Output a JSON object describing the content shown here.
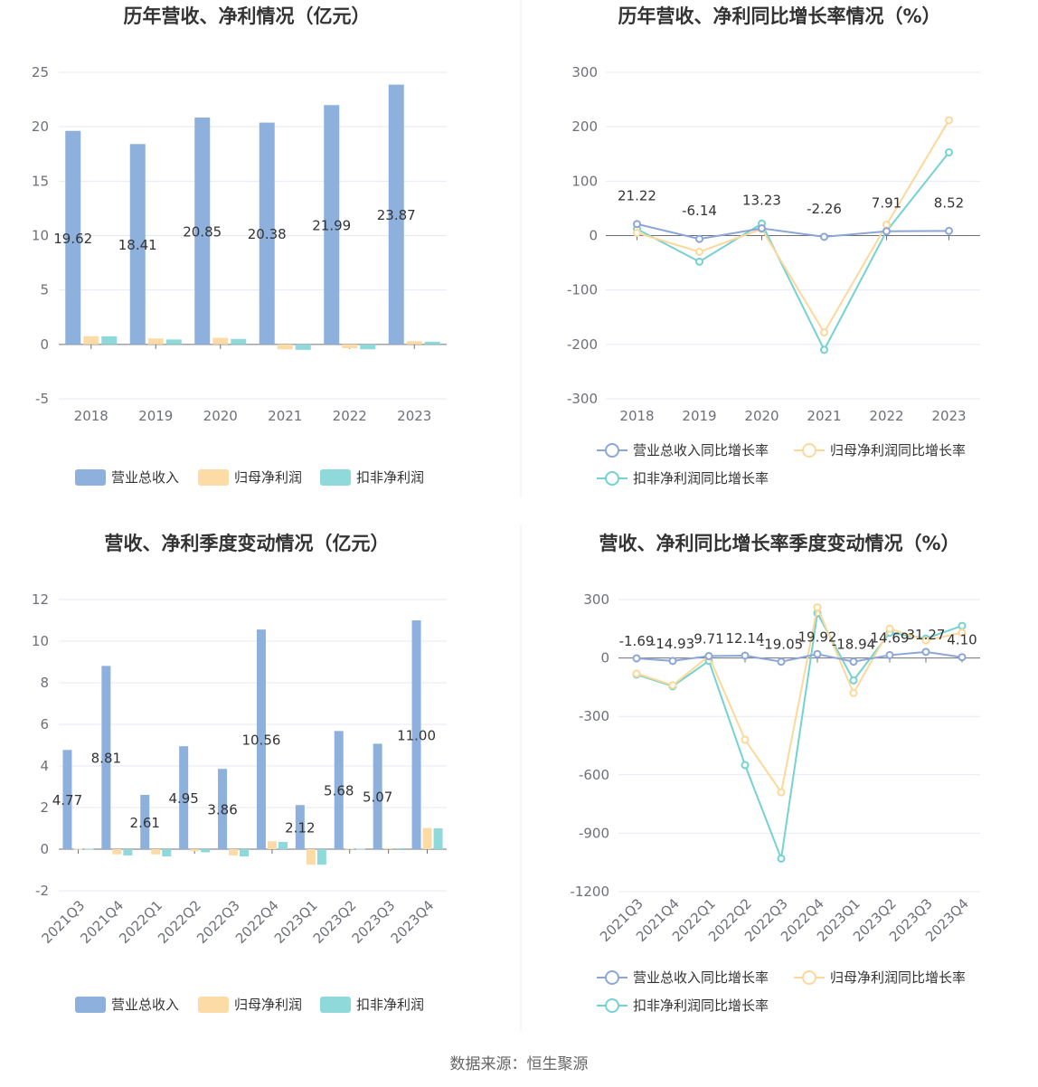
{
  "source": "数据来源：恒生聚源",
  "colors": {
    "revenue": "#8eb0dd",
    "net_profit": "#fcdba7",
    "deducted_profit": "#8fd9da",
    "revenue_line": "#8ca6d8",
    "net_line": "#fcd89a",
    "deducted_line": "#74d2d0"
  },
  "chart_data": [
    {
      "id": "annual_amount",
      "type": "bar",
      "title": "历年营收、净利情况（亿元）",
      "categories": [
        "2018",
        "2019",
        "2020",
        "2021",
        "2022",
        "2023"
      ],
      "ylim": [
        -5,
        25
      ],
      "yticks": [
        -5,
        0,
        5,
        10,
        15,
        20,
        25
      ],
      "series": [
        {
          "name": "营业总收入",
          "values": [
            19.62,
            18.41,
            20.85,
            20.38,
            21.99,
            23.87
          ]
        },
        {
          "name": "归母净利润",
          "values": [
            0.75,
            0.55,
            0.6,
            -0.45,
            -0.35,
            0.3
          ]
        },
        {
          "name": "扣非净利润",
          "values": [
            0.75,
            0.45,
            0.5,
            -0.5,
            -0.45,
            0.25
          ]
        }
      ],
      "data_labels": [
        "19.62",
        "18.41",
        "20.85",
        "20.38",
        "21.99",
        "23.87"
      ]
    },
    {
      "id": "annual_growth",
      "type": "line",
      "title": "历年营收、净利同比增长率情况（%）",
      "categories": [
        "2018",
        "2019",
        "2020",
        "2021",
        "2022",
        "2023"
      ],
      "ylim": [
        -300,
        300
      ],
      "yticks": [
        -300,
        -200,
        -100,
        0,
        100,
        200,
        300
      ],
      "series": [
        {
          "name": "营业总收入同比增长率",
          "values": [
            21.22,
            -6.14,
            13.23,
            -2.26,
            7.91,
            8.52
          ]
        },
        {
          "name": "归母净利润同比增长率",
          "values": [
            5,
            -30,
            12,
            -178,
            20,
            212
          ]
        },
        {
          "name": "扣非净利润同比增长率",
          "values": [
            12,
            -48,
            22,
            -210,
            8,
            153
          ]
        }
      ],
      "data_labels": [
        "21.22",
        "-6.14",
        "13.23",
        "-2.26",
        "7.91",
        "8.52"
      ]
    },
    {
      "id": "quarterly_amount",
      "type": "bar",
      "title": "营收、净利季度变动情况（亿元）",
      "categories": [
        "2021Q3",
        "2021Q4",
        "2022Q1",
        "2022Q2",
        "2022Q3",
        "2022Q4",
        "2023Q1",
        "2023Q2",
        "2023Q3",
        "2023Q4"
      ],
      "ylim": [
        -2,
        12
      ],
      "yticks": [
        -2,
        0,
        2,
        4,
        6,
        8,
        10,
        12
      ],
      "series": [
        {
          "name": "营业总收入",
          "values": [
            4.77,
            8.81,
            2.61,
            4.95,
            3.86,
            10.56,
            2.12,
            5.68,
            5.07,
            11.0
          ]
        },
        {
          "name": "归母净利润",
          "values": [
            0.02,
            -0.25,
            -0.25,
            -0.1,
            -0.3,
            0.38,
            -0.75,
            0.03,
            0.05,
            1.02
          ]
        },
        {
          "name": "扣非净利润",
          "values": [
            0.02,
            -0.3,
            -0.35,
            -0.15,
            -0.35,
            0.35,
            -0.75,
            0.02,
            0.04,
            1.0
          ]
        }
      ],
      "data_labels": [
        "4.77",
        "8.81",
        "2.61",
        "4.95",
        "3.86",
        "10.56",
        "2.12",
        "5.68",
        "5.07",
        "11.00"
      ]
    },
    {
      "id": "quarterly_growth",
      "type": "line",
      "title": "营收、净利同比增长率季度变动情况（%）",
      "categories": [
        "2021Q3",
        "2021Q4",
        "2022Q1",
        "2022Q2",
        "2022Q3",
        "2022Q4",
        "2023Q1",
        "2023Q2",
        "2023Q3",
        "2023Q4"
      ],
      "ylim": [
        -1200,
        300
      ],
      "yticks": [
        -1200,
        -900,
        -600,
        -300,
        0,
        300
      ],
      "series": [
        {
          "name": "营业总收入同比增长率",
          "values": [
            -1.69,
            -14.93,
            9.71,
            12.14,
            -19.05,
            19.92,
            -18.94,
            14.69,
            31.27,
            4.1
          ]
        },
        {
          "name": "归母净利润同比增长率",
          "values": [
            -80,
            -140,
            10,
            -420,
            -690,
            260,
            -180,
            150,
            90,
            130
          ]
        },
        {
          "name": "扣非净利润同比增长率",
          "values": [
            -85,
            -145,
            -15,
            -550,
            -1030,
            230,
            -115,
            130,
            100,
            165
          ]
        }
      ],
      "data_labels": [
        "-1.69",
        "-14.93",
        "9.71",
        "12.14",
        "-19.05",
        "19.92",
        "-18.94",
        "14.69",
        "31.27",
        "4.10"
      ]
    }
  ]
}
